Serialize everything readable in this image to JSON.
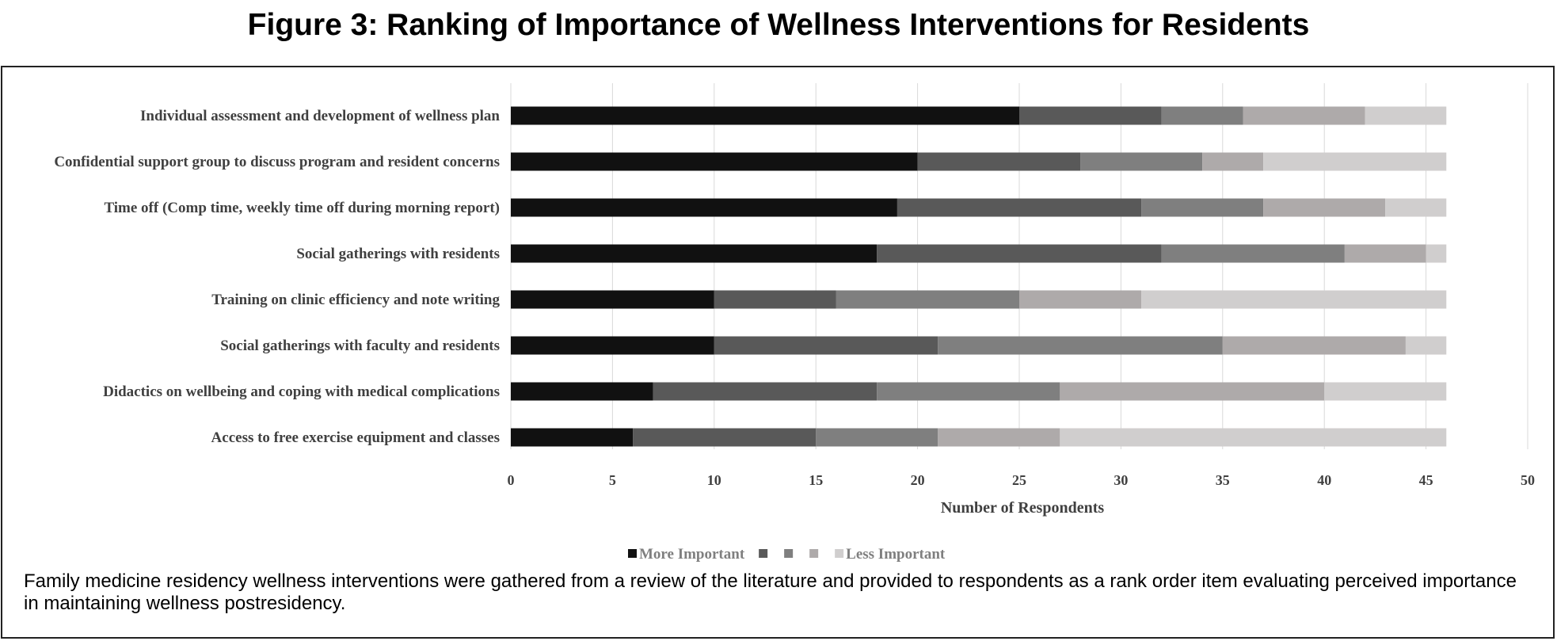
{
  "figure": {
    "title": "Figure 3: Ranking of Importance of Wellness Interventions for Residents",
    "caption": "Family medicine residency wellness interventions were gathered from a review of the literature and provided to respondents as a rank order item evaluating perceived importance in maintaining wellness postresidency."
  },
  "chart_data": {
    "type": "bar",
    "orientation": "horizontal",
    "stacked": true,
    "title": "",
    "xlabel": "Number  of Respondents",
    "ylabel": "",
    "xlim": [
      0,
      50
    ],
    "xticks": [
      0,
      5,
      10,
      15,
      20,
      25,
      30,
      35,
      40,
      45,
      50
    ],
    "grid": "vertical",
    "legend_position": "bottom",
    "categories": [
      "Individual assessment and development of wellness plan",
      "Confidential support group to discuss program and resident concerns",
      "Time off (Comp time, weekly time off during morning report)",
      "Social gatherings with residents",
      "Training on clinic efficiency and note writing",
      "Social gatherings with faculty and residents",
      "Didactics on wellbeing and coping with medical complications",
      "Access to free exercise equipment and classes"
    ],
    "series": [
      {
        "name": "More Important",
        "color": "#111111",
        "values": [
          25,
          20,
          19,
          18,
          10,
          10,
          7,
          6
        ]
      },
      {
        "name": "",
        "color": "#595959",
        "values": [
          7,
          8,
          12,
          14,
          6,
          11,
          11,
          9
        ]
      },
      {
        "name": "",
        "color": "#7f7f7f",
        "values": [
          4,
          6,
          6,
          9,
          9,
          14,
          9,
          6
        ]
      },
      {
        "name": "",
        "color": "#aeaaaa",
        "values": [
          6,
          3,
          6,
          4,
          6,
          9,
          13,
          6
        ]
      },
      {
        "name": "Less Important",
        "color": "#d0cece",
        "values": [
          4,
          9,
          3,
          1,
          15,
          2,
          6,
          19
        ]
      }
    ]
  }
}
